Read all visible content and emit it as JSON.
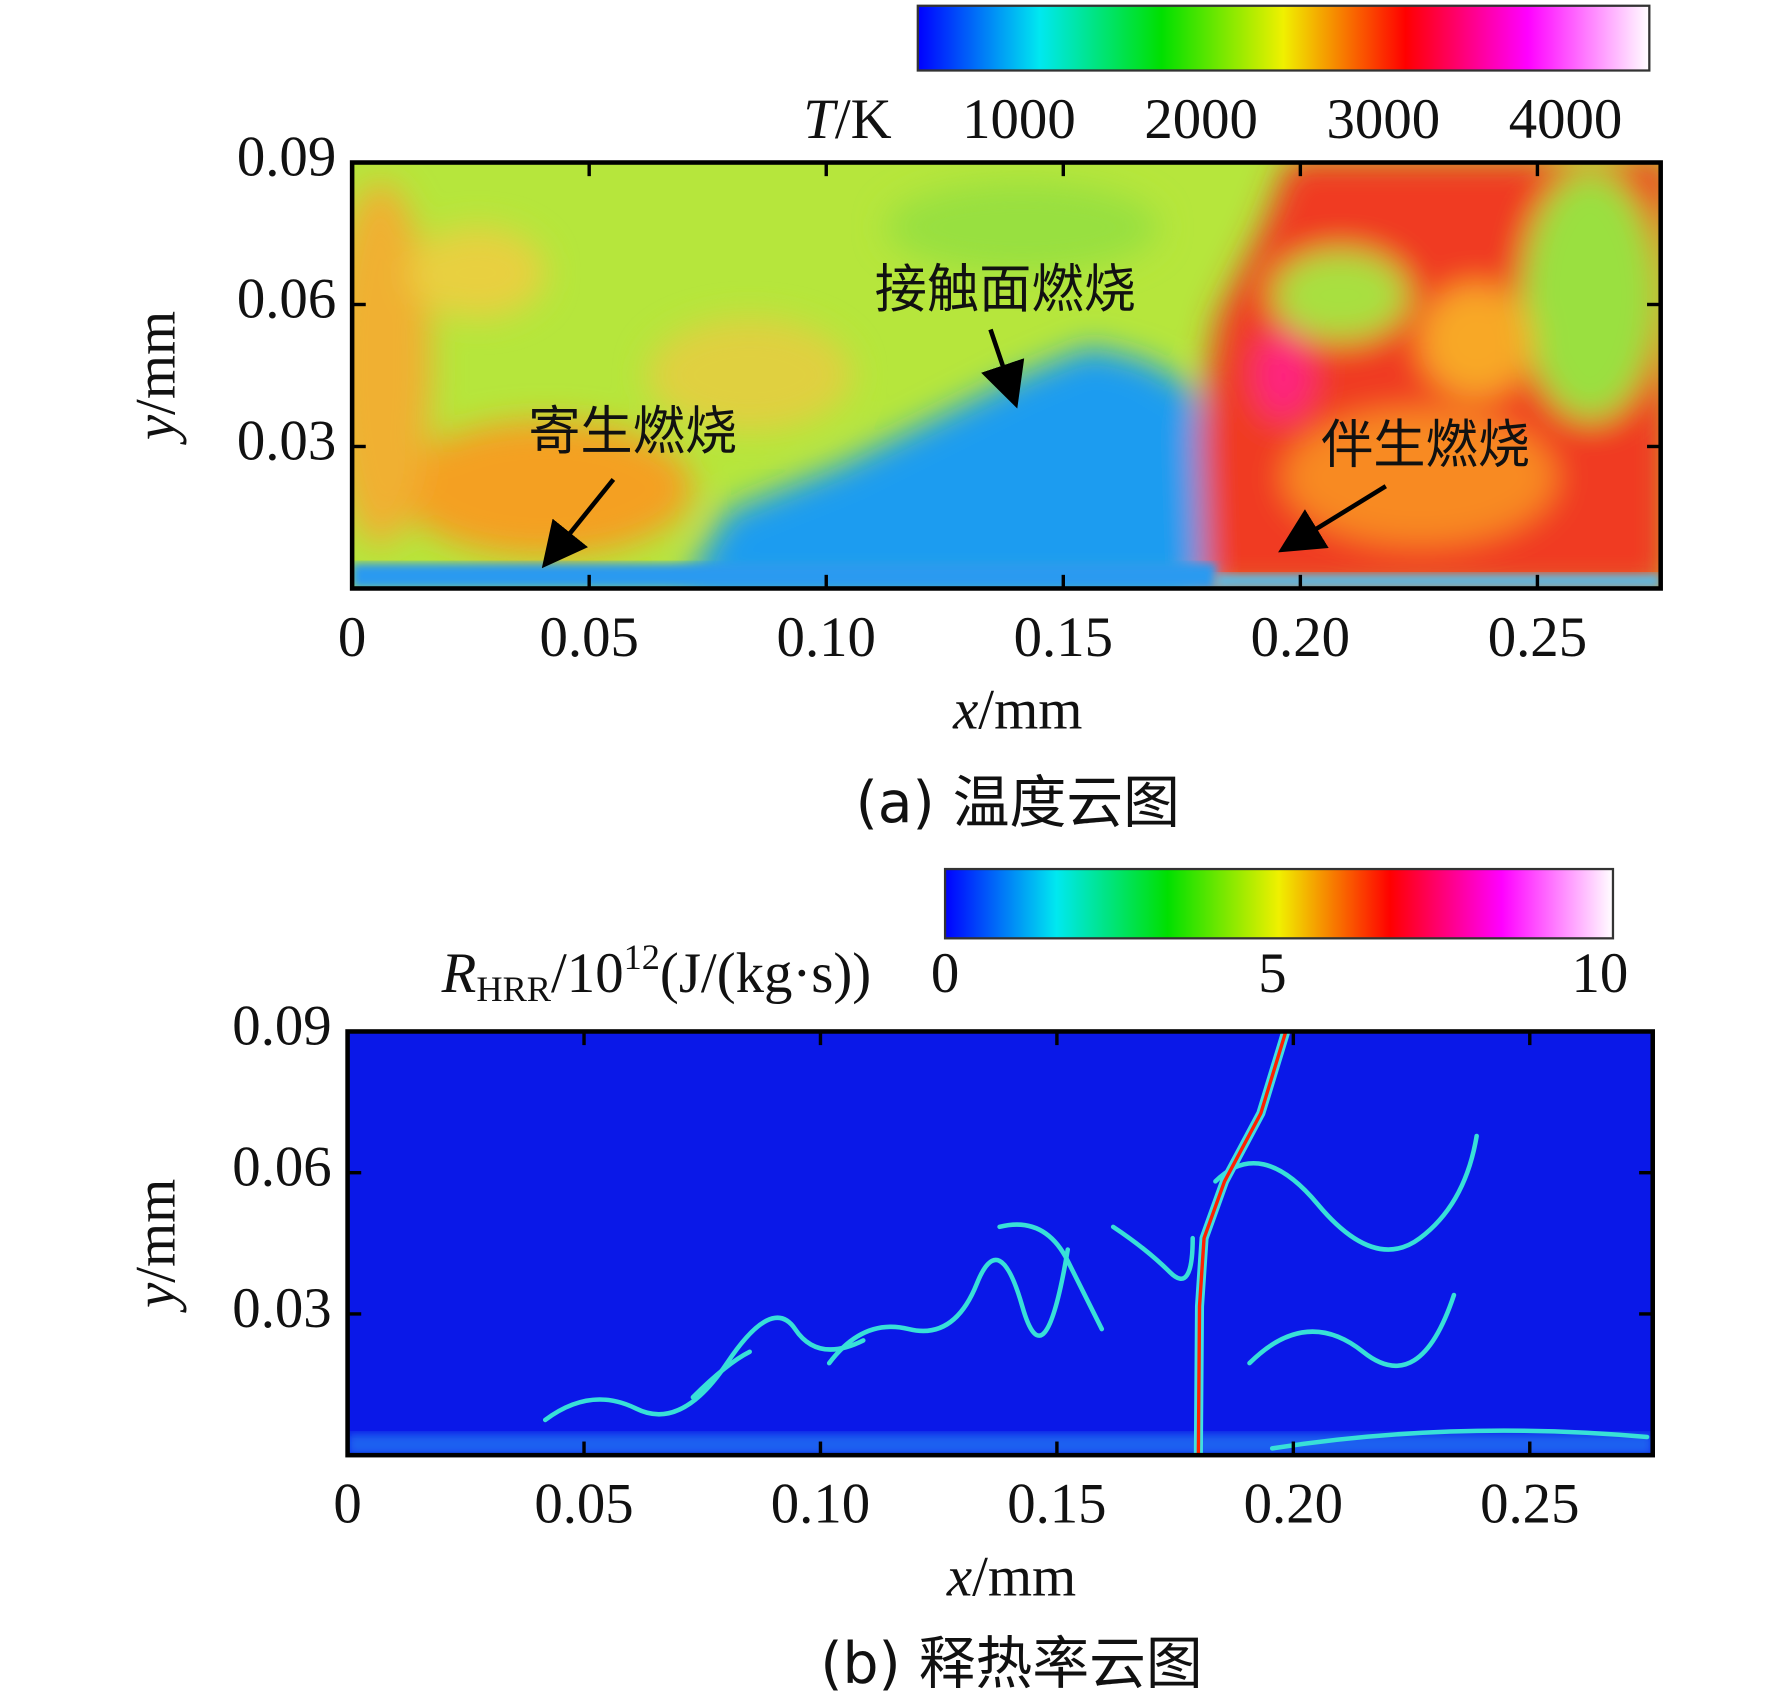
{
  "chart_data": [
    {
      "type": "contour",
      "caption": "(a) 温度云图",
      "x_label": [
        {
          "text": "x",
          "style": "italic"
        },
        {
          "text": "/mm",
          "style": "normal"
        }
      ],
      "y_label": [
        {
          "text": "y",
          "style": "italic"
        },
        {
          "text": "/mm",
          "style": "normal"
        }
      ],
      "xlim": [
        0,
        0.276
      ],
      "ylim": [
        0,
        0.09
      ],
      "xticks": [
        0,
        0.05,
        {
          "value": 0.1,
          "label": "0.10"
        },
        0.15,
        {
          "value": 0.2,
          "label": "0.20"
        },
        0.25
      ],
      "yticks": [
        0.03,
        0.06,
        0.09
      ],
      "colorbar": {
        "label": [
          {
            "text": "T",
            "style": "italic"
          },
          {
            "text": "/K",
            "style": "normal"
          }
        ],
        "lim": [
          445,
          4460
        ],
        "ticks": [
          1000,
          2000,
          3000,
          4000
        ],
        "colormap": [
          "#0000ff",
          "#00e8f0",
          "#00e000",
          "#f0f000",
          "#ff0000",
          "#ff00ff",
          "#ffffff"
        ]
      },
      "annotations": [
        "寄生燃烧",
        "接触面燃烧",
        "伴生燃烧"
      ]
    },
    {
      "type": "contour",
      "caption": "(b) 释热率云图",
      "x_label": [
        {
          "text": "x",
          "style": "italic"
        },
        {
          "text": "/mm",
          "style": "normal"
        }
      ],
      "y_label": [
        {
          "text": "y",
          "style": "italic"
        },
        {
          "text": "/mm",
          "style": "normal"
        }
      ],
      "xlim": [
        0,
        0.276
      ],
      "ylim": [
        0,
        0.09
      ],
      "xticks": [
        0,
        0.05,
        {
          "value": 0.1,
          "label": "0.10"
        },
        0.15,
        {
          "value": 0.2,
          "label": "0.20"
        },
        0.25
      ],
      "yticks": [
        0.03,
        0.06,
        0.09
      ],
      "colorbar": {
        "label": [
          {
            "text": "R",
            "style": "italic"
          },
          {
            "text": "HRR",
            "style": "sub"
          },
          {
            "text": "/10",
            "style": "normal"
          },
          {
            "text": "12",
            "style": "sup"
          },
          {
            "text": "(J/(kg·s))",
            "style": "normal"
          }
        ],
        "lim": [
          0,
          10.2
        ],
        "ticks": [
          0,
          5,
          10
        ],
        "colormap": [
          "#0000ff",
          "#00e8f0",
          "#00e000",
          "#f0f000",
          "#ff0000",
          "#ff00ff",
          "#ffffff"
        ]
      },
      "annotations": []
    }
  ]
}
